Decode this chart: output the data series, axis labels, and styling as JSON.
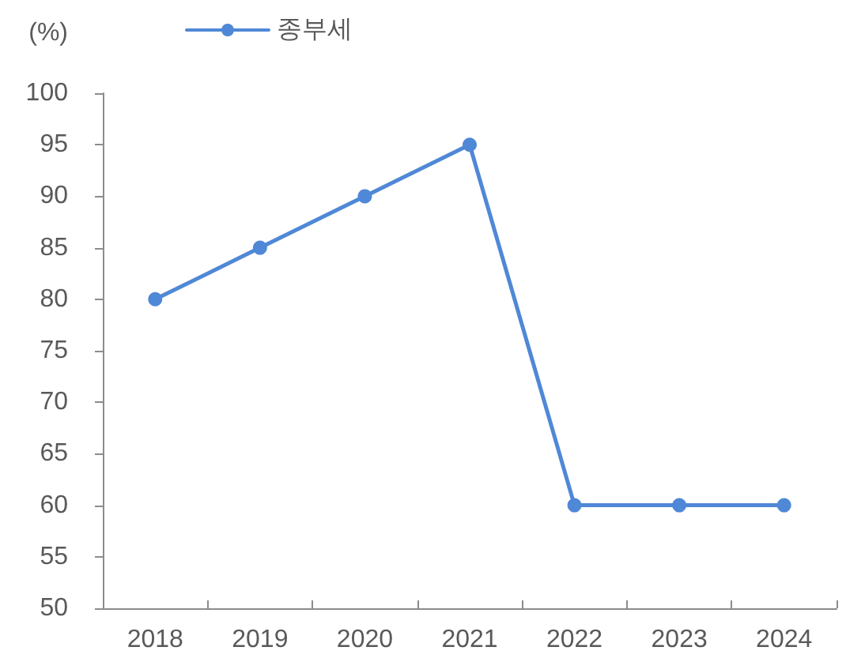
{
  "chart_data": {
    "type": "line",
    "ylabel": "(%)",
    "categories": [
      "2018",
      "2019",
      "2020",
      "2021",
      "2022",
      "2023",
      "2024"
    ],
    "series": [
      {
        "name": "종부세",
        "color": "#4f88d6",
        "values": [
          80,
          85,
          90,
          95,
          60,
          60,
          60
        ]
      }
    ],
    "ylim": [
      50,
      100
    ],
    "yticks": [
      50,
      55,
      60,
      65,
      70,
      75,
      80,
      85,
      90,
      95,
      100
    ],
    "grid": false,
    "legend": "top",
    "marker": "circle",
    "line_style": "solid"
  }
}
